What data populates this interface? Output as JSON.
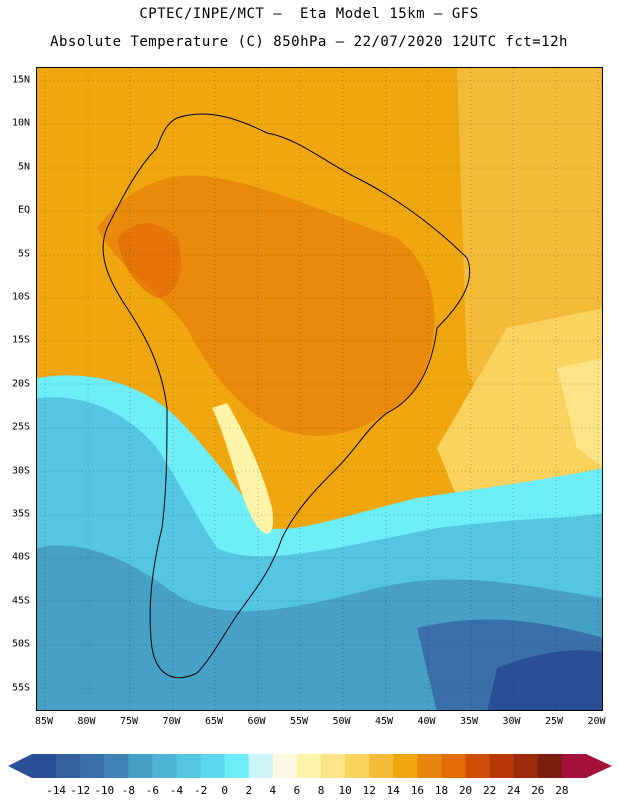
{
  "header": {
    "line1": "CPTEC/INPE/MCT –  Eta Model 15km – GFS",
    "line2": "Absolute Temperature (C) 850hPa – 22/07/2020 12UTC fct=12h"
  },
  "map": {
    "lat_labels": [
      "15N",
      "10N",
      "5N",
      "EQ",
      "5S",
      "10S",
      "15S",
      "20S",
      "25S",
      "30S",
      "35S",
      "40S",
      "45S",
      "50S",
      "55S"
    ],
    "lon_labels": [
      "85W",
      "80W",
      "75W",
      "70W",
      "65W",
      "60W",
      "55W",
      "50W",
      "45W",
      "40W",
      "35W",
      "30W",
      "25W",
      "20W"
    ]
  },
  "colorbar": {
    "ticks": [
      "-14",
      "-12",
      "-10",
      "-8",
      "-6",
      "-4",
      "-2",
      "0",
      "2",
      "4",
      "6",
      "8",
      "10",
      "12",
      "14",
      "16",
      "18",
      "20",
      "22",
      "24",
      "26",
      "28"
    ],
    "colors": [
      "#2a4f96",
      "#33609f",
      "#3a70aa",
      "#4082b6",
      "#47a0c6",
      "#4fb5d6",
      "#54c6e2",
      "#5fd8ef",
      "#6deef8",
      "#ccf3f8",
      "#fff8e2",
      "#fdf4a8",
      "#fde486",
      "#fad25e",
      "#f4bb38",
      "#f0a60e",
      "#e8850c",
      "#e26c08",
      "#cf4e08",
      "#b83808",
      "#9b2a0c",
      "#7a1c0e",
      "#a4113a"
    ]
  }
}
